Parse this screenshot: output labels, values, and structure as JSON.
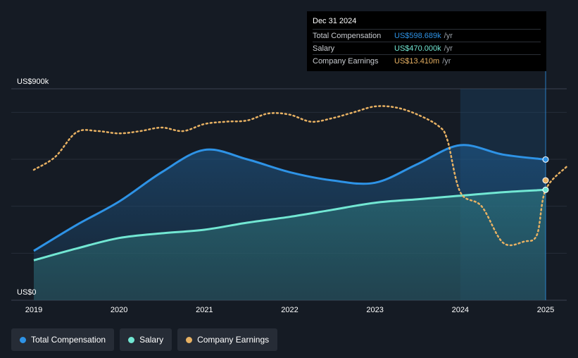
{
  "chart_data": {
    "type": "area",
    "x": [
      2019.0,
      2019.5,
      2020.0,
      2020.5,
      2021.0,
      2021.5,
      2022.0,
      2022.5,
      2023.0,
      2023.5,
      2024.0,
      2024.5,
      2025.0
    ],
    "series": [
      {
        "name": "Total Compensation",
        "values": [
          210,
          320,
          420,
          545,
          640,
          600,
          545,
          510,
          500,
          580,
          660,
          620,
          599
        ],
        "color": "#2e93e6"
      },
      {
        "name": "Salary",
        "values": [
          170,
          220,
          265,
          285,
          300,
          330,
          355,
          385,
          415,
          430,
          445,
          460,
          470
        ],
        "color": "#72e7d3"
      },
      {
        "name": "Company Earnings",
        "color": "#e7b163",
        "x": [
          2019.0,
          2019.25,
          2019.5,
          2019.75,
          2020.0,
          2020.25,
          2020.5,
          2020.75,
          2021.0,
          2021.25,
          2021.5,
          2021.75,
          2022.0,
          2022.25,
          2022.5,
          2022.75,
          2023.0,
          2023.25,
          2023.5,
          2023.75,
          2023.85,
          2024.0,
          2024.25,
          2024.5,
          2024.75,
          2024.9,
          2025.0,
          2025.25
        ],
        "values": [
          555,
          610,
          715,
          720,
          710,
          720,
          735,
          720,
          750,
          760,
          765,
          795,
          790,
          760,
          775,
          800,
          825,
          820,
          790,
          740,
          680,
          460,
          400,
          245,
          250,
          280,
          470,
          570
        ]
      }
    ],
    "yaxis_label_top": "US$900k",
    "yaxis_label_bottom": "US$0",
    "ylim": [
      0,
      900
    ],
    "xlim": [
      2019,
      2025.25
    ],
    "x_ticks": [
      "2019",
      "2020",
      "2021",
      "2022",
      "2023",
      "2024",
      "2025"
    ],
    "grid": true,
    "highlight_start": 2024.0,
    "highlight_end": 2025.0,
    "legend_position": "bottom-left"
  },
  "tooltip": {
    "date": "Dec 31 2024",
    "rows": [
      {
        "label": "Total Compensation",
        "value": "US$598.689k",
        "unit": "/yr",
        "color": "#2e93e6"
      },
      {
        "label": "Salary",
        "value": "US$470.000k",
        "unit": "/yr",
        "color": "#72e7d3"
      },
      {
        "label": "Company Earnings",
        "value": "US$13.410m",
        "unit": "/yr",
        "color": "#e7b163"
      }
    ]
  },
  "legend": [
    {
      "label": "Total Compensation",
      "color": "#2e93e6"
    },
    {
      "label": "Salary",
      "color": "#72e7d3"
    },
    {
      "label": "Company Earnings",
      "color": "#e7b163"
    }
  ]
}
